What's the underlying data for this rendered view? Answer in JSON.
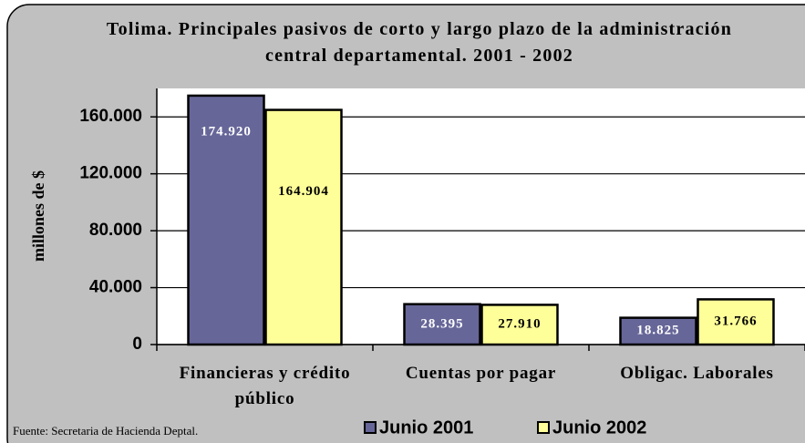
{
  "chart_data": {
    "type": "bar",
    "title": "Tolima.  Principales pasivos de corto y largo plazo de la administración central departamental. 2001 - 2002",
    "ylabel": "millones de $",
    "categories": [
      "Financieras y crédito público",
      "Cuentas por pagar",
      "Obligac. Laborales"
    ],
    "series": [
      {
        "name": "Junio 2001",
        "color": "#666699",
        "values": [
          174920,
          28395,
          18825
        ],
        "value_labels": [
          "174.920",
          "28.395",
          "18.825"
        ]
      },
      {
        "name": "Junio 2002",
        "color": "#ffff99",
        "values": [
          164904,
          27910,
          31766
        ],
        "value_labels": [
          "164.904",
          "27.910",
          "31.766"
        ]
      }
    ],
    "ylim": [
      0,
      180000
    ],
    "yticks": [
      0,
      {
        "value": 40000,
        "label": "40.000"
      },
      {
        "value": 80000,
        "label": "80.000"
      },
      {
        "value": 120000,
        "label": "120.000"
      },
      {
        "value": 160000,
        "label": "160.000"
      }
    ],
    "grid": true,
    "source": "Fuente: Secretaria de Hacienda Deptal.",
    "legend": "bottom"
  }
}
